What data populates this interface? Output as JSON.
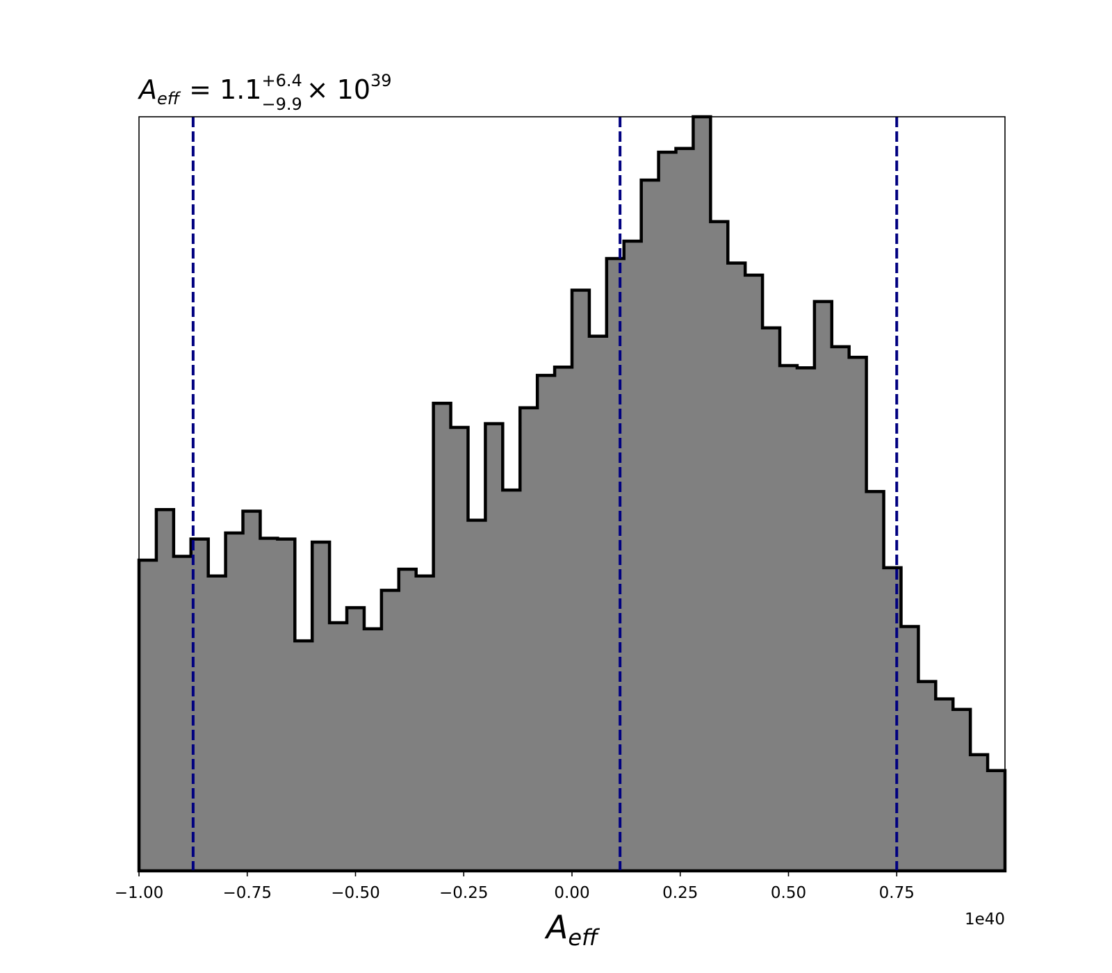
{
  "chart_data": {
    "type": "histogram",
    "title": {
      "variable": "A",
      "variable_subscript": "eff",
      "equals": "= 1.1",
      "upper": "+6.4",
      "lower": "−9.9",
      "times": "× 10",
      "exponent": "39"
    },
    "xlabel": {
      "variable": "A",
      "subscript": "eff"
    },
    "x_offset_text": "1e40",
    "xlim": [
      -1.0,
      1.0
    ],
    "ylim": [
      0,
      1.0
    ],
    "y_axis_visible": false,
    "grid": false,
    "xticks": [
      -1.0,
      -0.75,
      -0.5,
      -0.25,
      0.0,
      0.25,
      0.5,
      0.75
    ],
    "xtick_labels": [
      "−1.00",
      "−0.75",
      "−0.50",
      "−0.25",
      "0.00",
      "0.25",
      "0.50",
      "0.75"
    ],
    "bin_start": -1.0,
    "bin_width": 0.04,
    "bin_heights": [
      0.412,
      0.479,
      0.417,
      0.44,
      0.391,
      0.448,
      0.477,
      0.441,
      0.44,
      0.305,
      0.436,
      0.329,
      0.349,
      0.321,
      0.372,
      0.4,
      0.391,
      0.62,
      0.588,
      0.465,
      0.593,
      0.505,
      0.614,
      0.657,
      0.668,
      0.77,
      0.709,
      0.812,
      0.835,
      0.916,
      0.953,
      0.958,
      1.0,
      0.861,
      0.806,
      0.79,
      0.72,
      0.67,
      0.667,
      0.755,
      0.695,
      0.681,
      0.503,
      0.402,
      0.324,
      0.251,
      0.228,
      0.214,
      0.154,
      0.133
    ],
    "vlines": [
      -0.875,
      0.111,
      0.75
    ],
    "bar_fill": "#808080",
    "bar_edge": "#000000",
    "vline_color": "#000080"
  }
}
